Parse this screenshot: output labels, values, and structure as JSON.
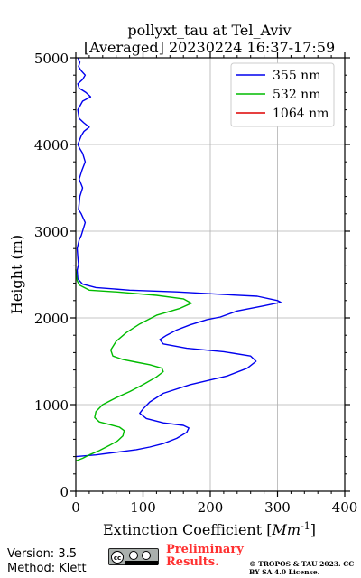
{
  "chart_data": {
    "type": "line",
    "title": "pollyxt_tau at Tel_Aviv",
    "subtitle": "[Averaged] 20230224 16:37-17:59",
    "xlabel": "Extinction Coefficient [",
    "xlabel_unit_base": "Mm",
    "xlabel_unit_exp": "-1",
    "xlabel_suffix": "]",
    "ylabel": "Height (m)",
    "xlim": [
      0,
      400
    ],
    "ylim": [
      0,
      5000
    ],
    "xticks": [
      "0",
      "100",
      "200",
      "300",
      "400"
    ],
    "yticks": [
      "0",
      "1000",
      "2000",
      "3000",
      "4000",
      "5000"
    ],
    "grid": true,
    "legend_position": "top-right",
    "series": [
      {
        "name": "355 nm",
        "color": "#0000ee",
        "points": [
          [
            0,
            400
          ],
          [
            30,
            420
          ],
          [
            60,
            450
          ],
          [
            90,
            480
          ],
          [
            110,
            510
          ],
          [
            130,
            550
          ],
          [
            150,
            610
          ],
          [
            165,
            680
          ],
          [
            168,
            730
          ],
          [
            160,
            760
          ],
          [
            130,
            790
          ],
          [
            105,
            840
          ],
          [
            95,
            900
          ],
          [
            100,
            950
          ],
          [
            110,
            1030
          ],
          [
            130,
            1130
          ],
          [
            170,
            1230
          ],
          [
            225,
            1330
          ],
          [
            255,
            1420
          ],
          [
            268,
            1500
          ],
          [
            260,
            1560
          ],
          [
            220,
            1610
          ],
          [
            165,
            1650
          ],
          [
            130,
            1700
          ],
          [
            125,
            1750
          ],
          [
            135,
            1800
          ],
          [
            150,
            1860
          ],
          [
            170,
            1920
          ],
          [
            195,
            1980
          ],
          [
            215,
            2010
          ],
          [
            240,
            2080
          ],
          [
            280,
            2140
          ],
          [
            305,
            2180
          ],
          [
            300,
            2200
          ],
          [
            270,
            2250
          ],
          [
            220,
            2270
          ],
          [
            150,
            2300
          ],
          [
            80,
            2320
          ],
          [
            30,
            2350
          ],
          [
            10,
            2390
          ],
          [
            3,
            2450
          ],
          [
            2,
            2550
          ],
          [
            4,
            2620
          ],
          [
            3,
            2700
          ],
          [
            2,
            2800
          ],
          [
            5,
            2900
          ],
          [
            8,
            2950
          ],
          [
            14,
            3100
          ],
          [
            8,
            3200
          ],
          [
            4,
            3250
          ],
          [
            6,
            3400
          ],
          [
            10,
            3500
          ],
          [
            5,
            3600
          ],
          [
            9,
            3700
          ],
          [
            14,
            3800
          ],
          [
            10,
            3900
          ],
          [
            6,
            3950
          ],
          [
            3,
            4000
          ],
          [
            8,
            4100
          ],
          [
            12,
            4150
          ],
          [
            20,
            4200
          ],
          [
            12,
            4250
          ],
          [
            5,
            4300
          ],
          [
            3,
            4400
          ],
          [
            10,
            4500
          ],
          [
            22,
            4550
          ],
          [
            15,
            4600
          ],
          [
            5,
            4650
          ],
          [
            3,
            4700
          ],
          [
            10,
            4750
          ],
          [
            14,
            4800
          ],
          [
            8,
            4850
          ],
          [
            4,
            4900
          ],
          [
            6,
            4950
          ],
          [
            3,
            5000
          ]
        ]
      },
      {
        "name": "532 nm",
        "color": "#00bb00",
        "points": [
          [
            0,
            350
          ],
          [
            10,
            380
          ],
          [
            20,
            420
          ],
          [
            35,
            470
          ],
          [
            50,
            530
          ],
          [
            62,
            580
          ],
          [
            70,
            640
          ],
          [
            72,
            700
          ],
          [
            65,
            740
          ],
          [
            50,
            770
          ],
          [
            35,
            800
          ],
          [
            28,
            850
          ],
          [
            30,
            920
          ],
          [
            40,
            1000
          ],
          [
            60,
            1080
          ],
          [
            80,
            1150
          ],
          [
            100,
            1230
          ],
          [
            120,
            1320
          ],
          [
            130,
            1380
          ],
          [
            128,
            1420
          ],
          [
            110,
            1460
          ],
          [
            90,
            1490
          ],
          [
            70,
            1520
          ],
          [
            55,
            1560
          ],
          [
            52,
            1630
          ],
          [
            60,
            1730
          ],
          [
            75,
            1830
          ],
          [
            95,
            1930
          ],
          [
            120,
            2030
          ],
          [
            155,
            2110
          ],
          [
            172,
            2170
          ],
          [
            160,
            2220
          ],
          [
            120,
            2260
          ],
          [
            60,
            2300
          ],
          [
            20,
            2320
          ],
          [
            5,
            2380
          ],
          [
            2,
            2430
          ],
          [
            1,
            2480
          ],
          [
            0,
            2560
          ]
        ]
      },
      {
        "name": "1064 nm",
        "color": "#dd0000",
        "points": []
      }
    ]
  },
  "footer": {
    "version": "Version: 3.5",
    "method": "Method: Klett",
    "cc_label": "cc",
    "preliminary": "Preliminary Results.",
    "copyright": "© TROPOS & TAU 2023. CC BY SA 4.0 License."
  }
}
